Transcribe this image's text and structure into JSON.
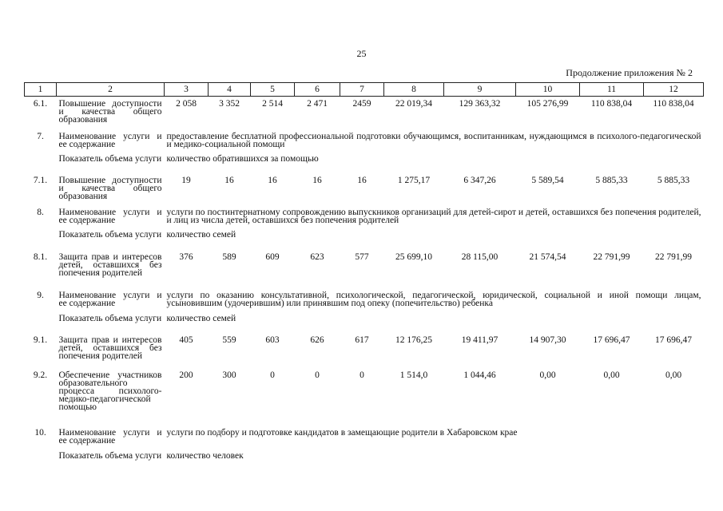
{
  "page_number": "25",
  "caption": "Продолжение приложения № 2",
  "table": {
    "columns": [
      "1",
      "2",
      "3",
      "4",
      "5",
      "6",
      "7",
      "8",
      "9",
      "10",
      "11",
      "12"
    ],
    "rows": [
      {
        "num": "6.1.",
        "name": "Повышение доступности и качества общего образования",
        "values": [
          "2 058",
          "3 352",
          "2 514",
          "2 471",
          "2459",
          "22 019,34",
          "129 363,32",
          "105 276,99",
          "110 838,04",
          "110 838,04"
        ]
      },
      {
        "num": "7.",
        "name": "Наименование услуги и ее содержание",
        "text": "предоставление бесплатной профессиональной подготовки обучающимся, воспитанникам, нуждающимся в психолого-педагогической и медико-социальной помощи"
      },
      {
        "name": "Показатель объема услуги",
        "text": "количество обратившихся за помощью"
      },
      {
        "num": "7.1.",
        "name": "Повышение доступности и качества общего образования",
        "values": [
          "19",
          "16",
          "16",
          "16",
          "16",
          "1 275,17",
          "6 347,26",
          "5 589,54",
          "5 885,33",
          "5 885,33"
        ]
      },
      {
        "num": "8.",
        "name": "Наименование услуги и ее содержание",
        "text": "услуги по постинтернатному сопровождению выпускников организаций для детей-сирот и детей, оставшихся без попечения родителей, и лиц из числа детей, оставшихся без попечения родителей"
      },
      {
        "name": "Показатель объема услуги",
        "text": "количество семей"
      },
      {
        "num": "8.1.",
        "name": "Защита прав и интересов детей, оставшихся без попечения родителей",
        "values": [
          "376",
          "589",
          "609",
          "623",
          "577",
          "25 699,10",
          "28 115,00",
          "21 574,54",
          "22 791,99",
          "22 791,99"
        ]
      },
      {
        "num": "9.",
        "name": "Наименование услуги и ее содержание",
        "text": "услуги по оказанию консультативной, психологической, педагогической, юридической, социальной и иной помощи лицам, усыновившим (удочерившим) или принявшим под опеку (попечительство) ребенка"
      },
      {
        "name": "Показатель объема услуги",
        "text": "количество семей"
      },
      {
        "num": "9.1.",
        "name": "Защита прав и интересов детей, оставшихся без попечения родителей",
        "values": [
          "405",
          "559",
          "603",
          "626",
          "617",
          "12 176,25",
          "19 411,97",
          "14 907,30",
          "17 696,47",
          "17 696,47"
        ]
      },
      {
        "num": "9.2.",
        "name": "Обеспечение участников образовательного процесса психолого-медико-педагогической помощью",
        "values": [
          "200",
          "300",
          "0",
          "0",
          "0",
          "1 514,0",
          "1 044,46",
          "0,00",
          "0,00",
          "0,00"
        ]
      },
      {
        "num": "10.",
        "name": "Наименование услуги и ее содержание",
        "text": "услуги по подбору и подготовке кандидатов в замещающие родители в Хабаровском крае"
      },
      {
        "name": "Показатель объема услуги",
        "text": "количество человек"
      }
    ]
  }
}
